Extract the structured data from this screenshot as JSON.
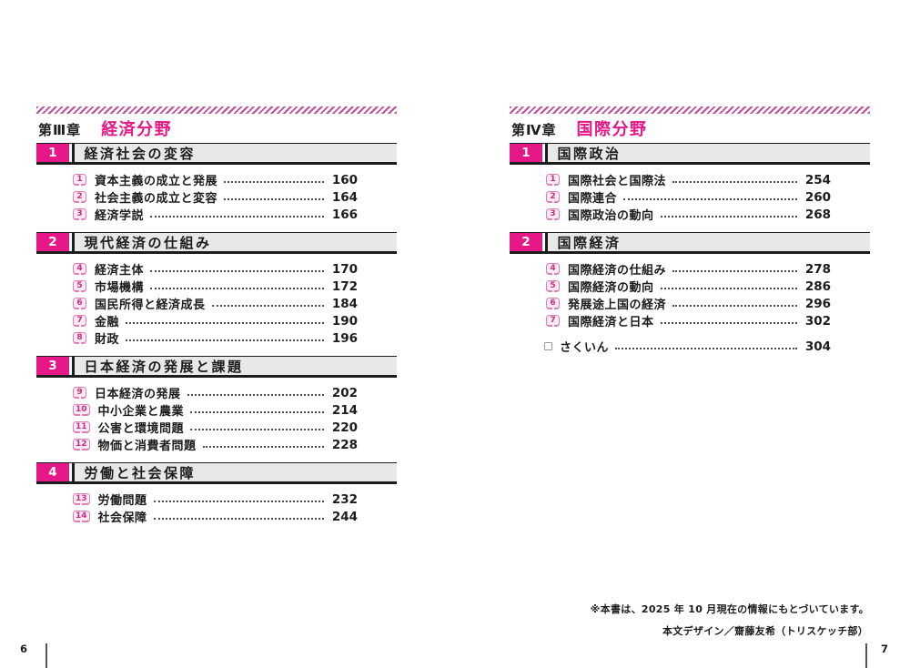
{
  "colors": {
    "accent": "#e61786",
    "stripe": "#bb4f9e",
    "header_bg": "#e8e8e8",
    "badge_border": "#df7fb6",
    "badge_bg": "#fce9f3",
    "badge_text": "#cb2c84"
  },
  "pages": {
    "left": {
      "page_number": "6",
      "chapter_label": "第Ⅲ章",
      "chapter_title": "経済分野",
      "sections": [
        {
          "num": "1",
          "title": "経済社会の変容",
          "items": [
            {
              "num": "1",
              "title": "資本主義の成立と発展",
              "page": "160"
            },
            {
              "num": "2",
              "title": "社会主義の成立と変容",
              "page": "164"
            },
            {
              "num": "3",
              "title": "経済学説",
              "page": "166"
            }
          ]
        },
        {
          "num": "2",
          "title": "現代経済の仕組み",
          "items": [
            {
              "num": "4",
              "title": "経済主体",
              "page": "170"
            },
            {
              "num": "5",
              "title": "市場機構",
              "page": "172"
            },
            {
              "num": "6",
              "title": "国民所得と経済成長",
              "page": "184"
            },
            {
              "num": "7",
              "title": "金融",
              "page": "190"
            },
            {
              "num": "8",
              "title": "財政",
              "page": "196"
            }
          ]
        },
        {
          "num": "3",
          "title": "日本経済の発展と課題",
          "items": [
            {
              "num": "9",
              "title": "日本経済の発展",
              "page": "202"
            },
            {
              "num": "10",
              "title": "中小企業と農業",
              "page": "214"
            },
            {
              "num": "11",
              "title": "公害と環境問題",
              "page": "220"
            },
            {
              "num": "12",
              "title": "物価と消費者問題",
              "page": "228"
            }
          ]
        },
        {
          "num": "4",
          "title": "労働と社会保障",
          "items": [
            {
              "num": "13",
              "title": "労働問題",
              "page": "232"
            },
            {
              "num": "14",
              "title": "社会保障",
              "page": "244"
            }
          ]
        }
      ]
    },
    "right": {
      "page_number": "7",
      "chapter_label": "第Ⅳ章",
      "chapter_title": "国際分野",
      "sections": [
        {
          "num": "1",
          "title": "国際政治",
          "items": [
            {
              "num": "1",
              "title": "国際社会と国際法",
              "page": "254"
            },
            {
              "num": "2",
              "title": "国際連合",
              "page": "260"
            },
            {
              "num": "3",
              "title": "国際政治の動向",
              "page": "268"
            }
          ]
        },
        {
          "num": "2",
          "title": "国際経済",
          "items": [
            {
              "num": "4",
              "title": "国際経済の仕組み",
              "page": "278"
            },
            {
              "num": "5",
              "title": "国際経済の動向",
              "page": "286"
            },
            {
              "num": "6",
              "title": "発展途上国の経済",
              "page": "296"
            },
            {
              "num": "7",
              "title": "国際経済と日本",
              "page": "302"
            }
          ]
        }
      ],
      "index_entry": {
        "title": "さくいん",
        "page": "304"
      }
    }
  },
  "footnotes": {
    "edition_note": "※本書は、2025 年 10 月現在の情報にもとづいています。",
    "design_credit": "本文デザイン／齋藤友希（トリスケッチ部）"
  }
}
